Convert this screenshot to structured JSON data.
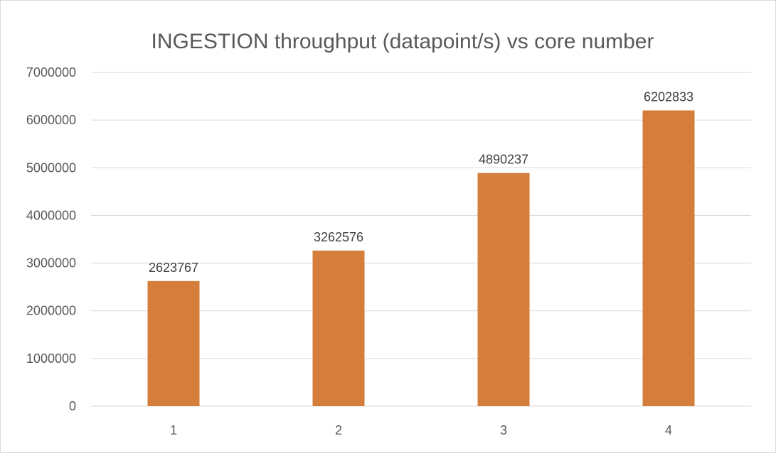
{
  "chart_data": {
    "type": "bar",
    "title": "INGESTION throughput (datapoint/s) vs core number",
    "xlabel": "",
    "ylabel": "",
    "categories": [
      "1",
      "2",
      "3",
      "4"
    ],
    "values": [
      2623767,
      3262576,
      4890237,
      6202833
    ],
    "data_labels": [
      "2623767",
      "3262576",
      "4890237",
      "6202833"
    ],
    "ylim": [
      0,
      7000000
    ],
    "y_ticks": [
      0,
      1000000,
      2000000,
      3000000,
      4000000,
      5000000,
      6000000,
      7000000
    ],
    "y_tick_labels": [
      "0",
      "1000000",
      "2000000",
      "3000000",
      "4000000",
      "5000000",
      "6000000",
      "7000000"
    ],
    "grid": true,
    "legend": "none",
    "colors": {
      "bar": "#d57d3a",
      "grid": "#d9d9d9",
      "text": "#595959",
      "data_label": "#404040"
    }
  }
}
